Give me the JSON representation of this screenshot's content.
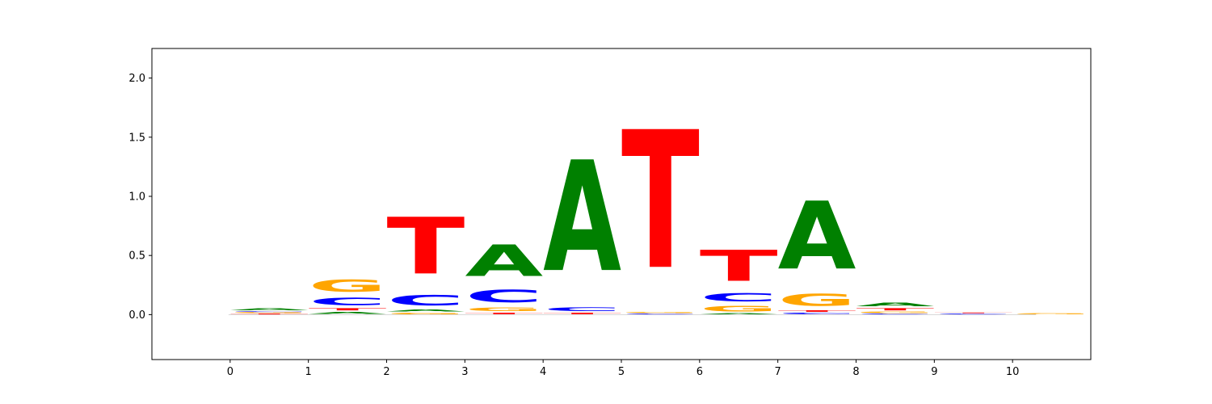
{
  "chart_data": {
    "type": "sequence-logo",
    "title": "",
    "xlabel": "",
    "ylabel": "",
    "xlim": [
      -1,
      11
    ],
    "ylim": [
      -0.38,
      2.25
    ],
    "xticks": [
      "0",
      "1",
      "2",
      "3",
      "4",
      "5",
      "6",
      "7",
      "8",
      "9",
      "10"
    ],
    "yticks": [
      "0.0",
      "0.5",
      "1.0",
      "1.5",
      "2.0"
    ],
    "grid": false,
    "colors": {
      "A": "#008000",
      "C": "#0000ff",
      "G": "#ffa500",
      "T": "#ff0000"
    },
    "positions": [
      {
        "x": 0,
        "stack": [
          {
            "base": "T",
            "height": 0.01
          },
          {
            "base": "G",
            "height": 0.01
          },
          {
            "base": "C",
            "height": 0.01
          },
          {
            "base": "A",
            "height": 0.03
          }
        ]
      },
      {
        "x": 1,
        "stack": [
          {
            "base": "A",
            "height": 0.03
          },
          {
            "base": "T",
            "height": 0.03
          },
          {
            "base": "C",
            "height": 0.1
          },
          {
            "base": "G",
            "height": 0.16
          }
        ]
      },
      {
        "x": 2,
        "stack": [
          {
            "base": "G",
            "height": 0.02
          },
          {
            "base": "A",
            "height": 0.03
          },
          {
            "base": "C",
            "height": 0.14
          },
          {
            "base": "T",
            "height": 0.77
          }
        ]
      },
      {
        "x": 3,
        "stack": [
          {
            "base": "T",
            "height": 0.02
          },
          {
            "base": "G",
            "height": 0.05
          },
          {
            "base": "C",
            "height": 0.17
          },
          {
            "base": "A",
            "height": 0.43
          }
        ]
      },
      {
        "x": 4,
        "stack": [
          {
            "base": "T",
            "height": 0.02
          },
          {
            "base": "C",
            "height": 0.05
          },
          {
            "base": "A",
            "height": 1.5
          }
        ]
      },
      {
        "x": 5,
        "stack": [
          {
            "base": "C",
            "height": 0.01
          },
          {
            "base": "G",
            "height": 0.01
          },
          {
            "base": "T",
            "height": 1.87
          }
        ]
      },
      {
        "x": 6,
        "stack": [
          {
            "base": "A",
            "height": 0.01
          },
          {
            "base": "G",
            "height": 0.08
          },
          {
            "base": "C",
            "height": 0.11
          },
          {
            "base": "T",
            "height": 0.42
          }
        ]
      },
      {
        "x": 7,
        "stack": [
          {
            "base": "C",
            "height": 0.02
          },
          {
            "base": "T",
            "height": 0.02
          },
          {
            "base": "G",
            "height": 0.16
          },
          {
            "base": "A",
            "height": 0.92
          }
        ]
      },
      {
        "x": 8,
        "stack": [
          {
            "base": "C",
            "height": 0.01
          },
          {
            "base": "G",
            "height": 0.02
          },
          {
            "base": "T",
            "height": 0.03
          },
          {
            "base": "A",
            "height": 0.05
          }
        ]
      },
      {
        "x": 9,
        "stack": [
          {
            "base": "C",
            "height": 0.01
          },
          {
            "base": "T",
            "height": 0.01
          }
        ]
      },
      {
        "x": 10,
        "stack": [
          {
            "base": "G",
            "height": 0.01
          }
        ]
      }
    ]
  }
}
